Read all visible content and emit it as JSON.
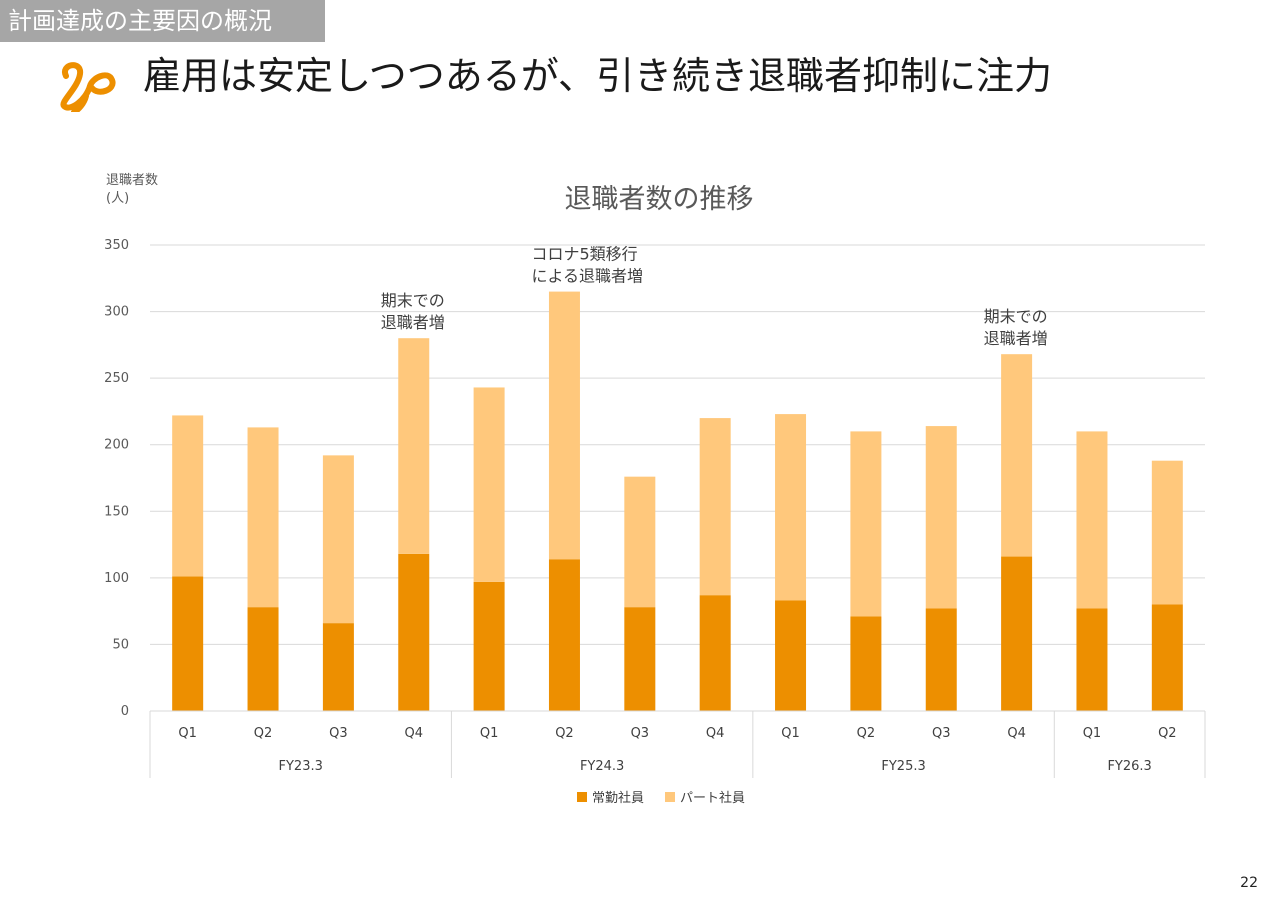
{
  "section_tag": "計画達成の主要因の概況",
  "slide_title": "雇用は安定しつつあるが、引き続き退職者抑制に注力",
  "page_number": "22",
  "colors": {
    "regular": "#ed8f00",
    "part": "#ffc87c",
    "grid": "#d9d9d9",
    "tag_bg": "#a6a6a6"
  },
  "chart_data": {
    "type": "bar",
    "stacked": true,
    "title": "退職者数の推移",
    "ylabel_line1": "退職者数",
    "ylabel_line2": "(人)",
    "ylim": [
      0,
      350
    ],
    "yticks": [
      0,
      50,
      100,
      150,
      200,
      250,
      300,
      350
    ],
    "categories": [
      "Q1",
      "Q2",
      "Q3",
      "Q4",
      "Q1",
      "Q2",
      "Q3",
      "Q4",
      "Q1",
      "Q2",
      "Q3",
      "Q4",
      "Q1",
      "Q2"
    ],
    "groups": [
      {
        "label": "FY23.3",
        "count": 4
      },
      {
        "label": "FY24.3",
        "count": 4
      },
      {
        "label": "FY25.3",
        "count": 4
      },
      {
        "label": "FY26.3",
        "count": 2
      }
    ],
    "series": [
      {
        "name": "常勤社員",
        "color": "#ed8f00",
        "values": [
          101,
          78,
          66,
          118,
          97,
          114,
          78,
          87,
          83,
          71,
          77,
          116,
          77,
          80
        ]
      },
      {
        "name": "パート社員",
        "color": "#ffc87c",
        "values": [
          121,
          135,
          126,
          162,
          146,
          201,
          98,
          133,
          140,
          139,
          137,
          152,
          133,
          108
        ]
      }
    ],
    "annotations": [
      {
        "index": 3,
        "lines": [
          "期末での",
          "退職者増"
        ]
      },
      {
        "index": 5,
        "lines": [
          "コロナ5類移行",
          "による退職者増"
        ]
      },
      {
        "index": 11,
        "lines": [
          "期末での",
          "退職者増"
        ]
      }
    ],
    "legend_position": "bottom"
  }
}
